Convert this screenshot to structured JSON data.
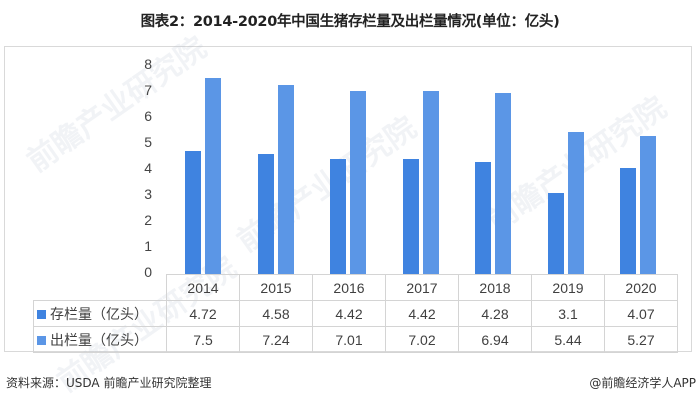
{
  "title": "图表2：2014-2020年中国生猪存栏量及出栏量情况(单位：亿头)",
  "colors": {
    "series0": "#3f83e0",
    "series1": "#5b96e6"
  },
  "y_ticks": [
    "8",
    "7",
    "6",
    "5",
    "4",
    "3",
    "2",
    "1",
    "0"
  ],
  "table": {
    "years": [
      "2014",
      "2015",
      "2016",
      "2017",
      "2018",
      "2019",
      "2020"
    ],
    "rows": [
      {
        "label": "存栏量（亿头）",
        "values": [
          "4.72",
          "4.58",
          "4.42",
          "4.42",
          "4.28",
          "3.1",
          "4.07"
        ]
      },
      {
        "label": "出栏量（亿头）",
        "values": [
          "7.5",
          "7.24",
          "7.01",
          "7.02",
          "6.94",
          "5.44",
          "5.27"
        ]
      }
    ]
  },
  "footer": {
    "source": "资料来源：USDA 前瞻产业研究院整理",
    "credit": "@前瞻经济学人APP"
  },
  "watermark": "前瞻产业研究院",
  "chart_data": {
    "type": "bar",
    "title": "图表2：2014-2020年中国生猪存栏量及出栏量情况(单位：亿头)",
    "categories": [
      "2014",
      "2015",
      "2016",
      "2017",
      "2018",
      "2019",
      "2020"
    ],
    "series": [
      {
        "name": "存栏量（亿头）",
        "values": [
          4.72,
          4.58,
          4.42,
          4.42,
          4.28,
          3.1,
          4.07
        ]
      },
      {
        "name": "出栏量（亿头）",
        "values": [
          7.5,
          7.24,
          7.01,
          7.02,
          6.94,
          5.44,
          5.27
        ]
      }
    ],
    "xlabel": "",
    "ylabel": "",
    "ylim": [
      0,
      8
    ],
    "yticks": [
      0,
      1,
      2,
      3,
      4,
      5,
      6,
      7,
      8
    ],
    "grid": false,
    "legend_position": "data-table"
  }
}
